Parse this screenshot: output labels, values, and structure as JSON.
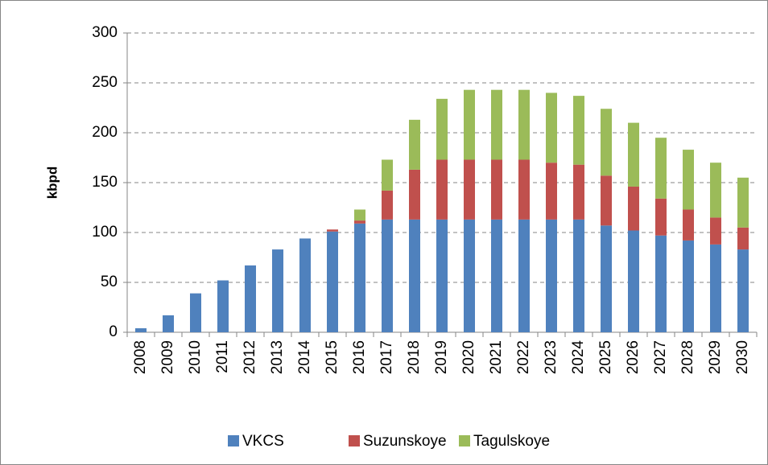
{
  "chart_data": {
    "type": "stacked_bar",
    "ylabel": "kbpd",
    "categories": [
      "2008",
      "2009",
      "2010",
      "2011",
      "2012",
      "2013",
      "2014",
      "2015",
      "2016",
      "2017",
      "2018",
      "2019",
      "2020",
      "2021",
      "2022",
      "2023",
      "2024",
      "2025",
      "2026",
      "2027",
      "2028",
      "2029",
      "2030"
    ],
    "series": [
      {
        "name": "VKCS",
        "color": "#4f81bd",
        "values": [
          4,
          17,
          39,
          52,
          67,
          83,
          94,
          101,
          109,
          113,
          113,
          113,
          113,
          113,
          113,
          113,
          113,
          107,
          102,
          97,
          92,
          88,
          83
        ]
      },
      {
        "name": "Suzunskoye",
        "color": "#c0504d",
        "values": [
          0,
          0,
          0,
          0,
          0,
          0,
          0,
          2,
          3,
          29,
          50,
          60,
          60,
          60,
          60,
          57,
          55,
          50,
          44,
          37,
          31,
          27,
          22
        ]
      },
      {
        "name": "Tagulskoye",
        "color": "#9bbb59",
        "values": [
          0,
          0,
          0,
          0,
          0,
          0,
          0,
          0,
          11,
          31,
          50,
          61,
          70,
          70,
          70,
          70,
          69,
          67,
          64,
          61,
          60,
          55,
          50
        ]
      }
    ],
    "ylim": [
      0,
      300
    ],
    "yticks": [
      0,
      50,
      100,
      150,
      200,
      250,
      300
    ],
    "grid": true,
    "legend": "bottom"
  }
}
